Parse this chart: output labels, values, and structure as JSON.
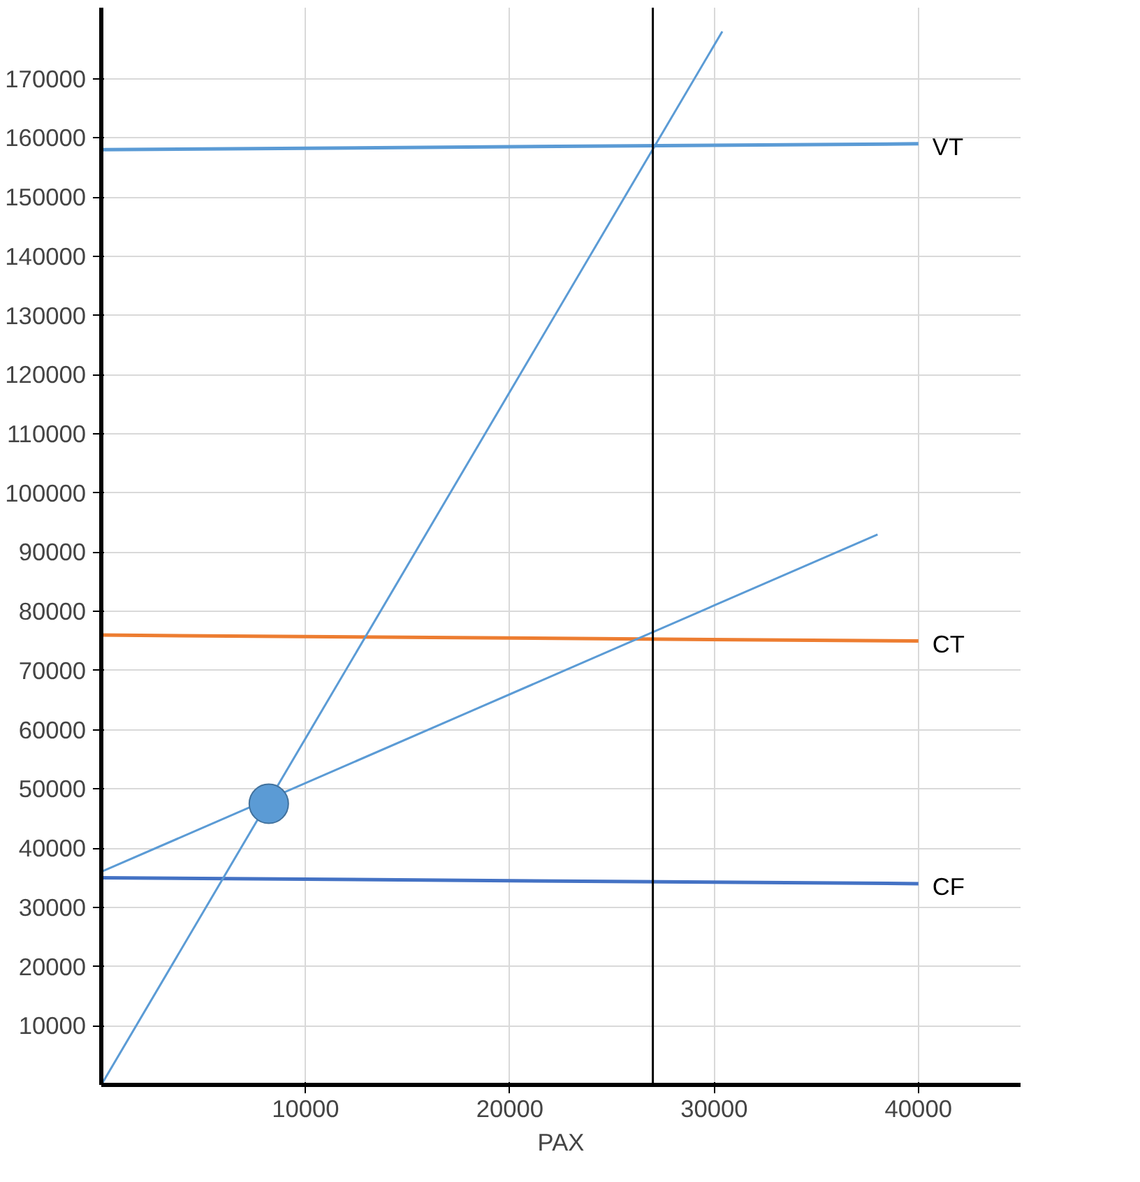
{
  "chart_data": {
    "type": "line",
    "xlabel": "PAX",
    "xlim": [
      0,
      45000
    ],
    "ylim": [
      0,
      182000
    ],
    "xticks": [
      10000,
      20000,
      30000,
      40000
    ],
    "yticks": [
      10000,
      20000,
      30000,
      40000,
      50000,
      60000,
      70000,
      80000,
      90000,
      100000,
      110000,
      120000,
      130000,
      140000,
      150000,
      160000,
      170000
    ],
    "grid": true,
    "marker": "none",
    "line_style": "solid",
    "series": [
      {
        "name": "VT",
        "color": "#5b9bd5",
        "x": [
          0,
          40000
        ],
        "values": [
          158000,
          159000
        ]
      },
      {
        "name": "CT",
        "color": "#ed7d31",
        "x": [
          0,
          40000
        ],
        "values": [
          76000,
          75000
        ]
      },
      {
        "name": "CF",
        "color": "#4472c4",
        "x": [
          0,
          40000
        ],
        "values": [
          35000,
          34000
        ]
      },
      {
        "color": "#5b9bd5",
        "x": [
          0,
          30400
        ],
        "values": [
          0,
          178000
        ]
      },
      {
        "color": "#5b9bd5",
        "x": [
          0,
          38000
        ],
        "values": [
          36000,
          93000
        ]
      },
      {
        "type": "scatter",
        "marker": "circle",
        "color": "#5b9bd5",
        "x": [
          8200
        ],
        "values": [
          47500
        ]
      }
    ],
    "ref_lines": [
      {
        "axis": "x",
        "value": 27000,
        "color": "#000000"
      }
    ]
  }
}
